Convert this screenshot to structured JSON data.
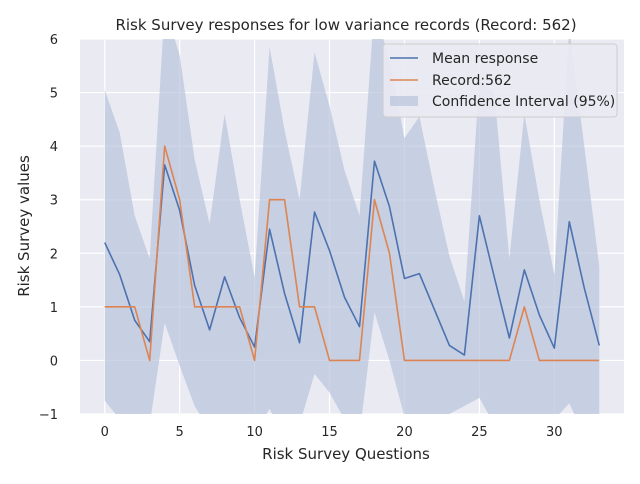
{
  "chart_data": {
    "type": "line",
    "title": "Risk Survey responses for low variance records (Record: 562)",
    "xlabel": "Risk Survey Questions",
    "ylabel": "Risk Survey values",
    "xlim": [
      -1.65,
      34.65
    ],
    "ylim": [
      -1,
      6
    ],
    "xticks": [
      0,
      5,
      10,
      15,
      20,
      25,
      30
    ],
    "yticks": [
      -1,
      0,
      1,
      2,
      3,
      4,
      5,
      6
    ],
    "ytick_labels": [
      "−1",
      "0",
      "1",
      "2",
      "3",
      "4",
      "5",
      "6"
    ],
    "grid": true,
    "legend_position": "top-right",
    "legend": [
      "Mean response",
      "Record:562",
      "Confidence Interval (95%)"
    ],
    "colors": {
      "mean": "#4c72b0",
      "record": "#dd8452",
      "band": "#b8c3dc",
      "background": "#eaeaf2",
      "grid": "#ffffff"
    },
    "x": [
      0,
      1,
      2,
      3,
      4,
      5,
      6,
      7,
      8,
      9,
      10,
      11,
      12,
      13,
      14,
      15,
      16,
      17,
      18,
      19,
      20,
      21,
      22,
      23,
      24,
      25,
      26,
      27,
      28,
      29,
      30,
      31,
      32,
      33
    ],
    "series": [
      {
        "name": "Mean response",
        "values": [
          2.2,
          1.6,
          0.75,
          0.35,
          3.65,
          2.8,
          1.4,
          0.57,
          1.56,
          0.8,
          0.25,
          2.45,
          1.25,
          0.33,
          2.77,
          2.05,
          1.18,
          0.63,
          3.72,
          2.87,
          1.53,
          1.62,
          0.95,
          0.28,
          0.1,
          2.7,
          1.55,
          0.42,
          1.69,
          0.85,
          0.23,
          2.59,
          1.35,
          0.28
        ]
      },
      {
        "name": "Record:562",
        "values": [
          1,
          1,
          1,
          0,
          4,
          3,
          1,
          1,
          1,
          1,
          0,
          3,
          3,
          1,
          1,
          0,
          0,
          0,
          3,
          2,
          0,
          0,
          0,
          0,
          0,
          0,
          0,
          0,
          1,
          0,
          0,
          0,
          0,
          0
        ]
      }
    ],
    "confidence_interval": {
      "name": "Confidence Interval (95%)",
      "upper": [
        5.05,
        4.25,
        2.7,
        1.9,
        6.6,
        5.7,
        3.75,
        2.55,
        4.6,
        3.0,
        1.55,
        5.85,
        4.3,
        3.0,
        5.75,
        4.75,
        3.55,
        2.7,
        6.6,
        5.6,
        4.15,
        4.55,
        3.2,
        1.95,
        1.1,
        5.2,
        5.0,
        1.9,
        4.6,
        3.0,
        1.6,
        6.2,
        4.0,
        1.75
      ],
      "lower": [
        -0.75,
        -1.1,
        -1.2,
        -1.2,
        0.7,
        -0.1,
        -0.85,
        -1.3,
        -1.2,
        -1.5,
        -1.4,
        -0.9,
        -1.5,
        -1.2,
        -0.25,
        -0.6,
        -1.1,
        -1.4,
        0.9,
        0.0,
        -1.05,
        -1.4,
        -1.1,
        -1.0,
        -0.85,
        -0.7,
        -1.2,
        -1.3,
        -1.1,
        -1.3,
        -1.1,
        -0.8,
        -1.4,
        -1.1
      ]
    }
  }
}
